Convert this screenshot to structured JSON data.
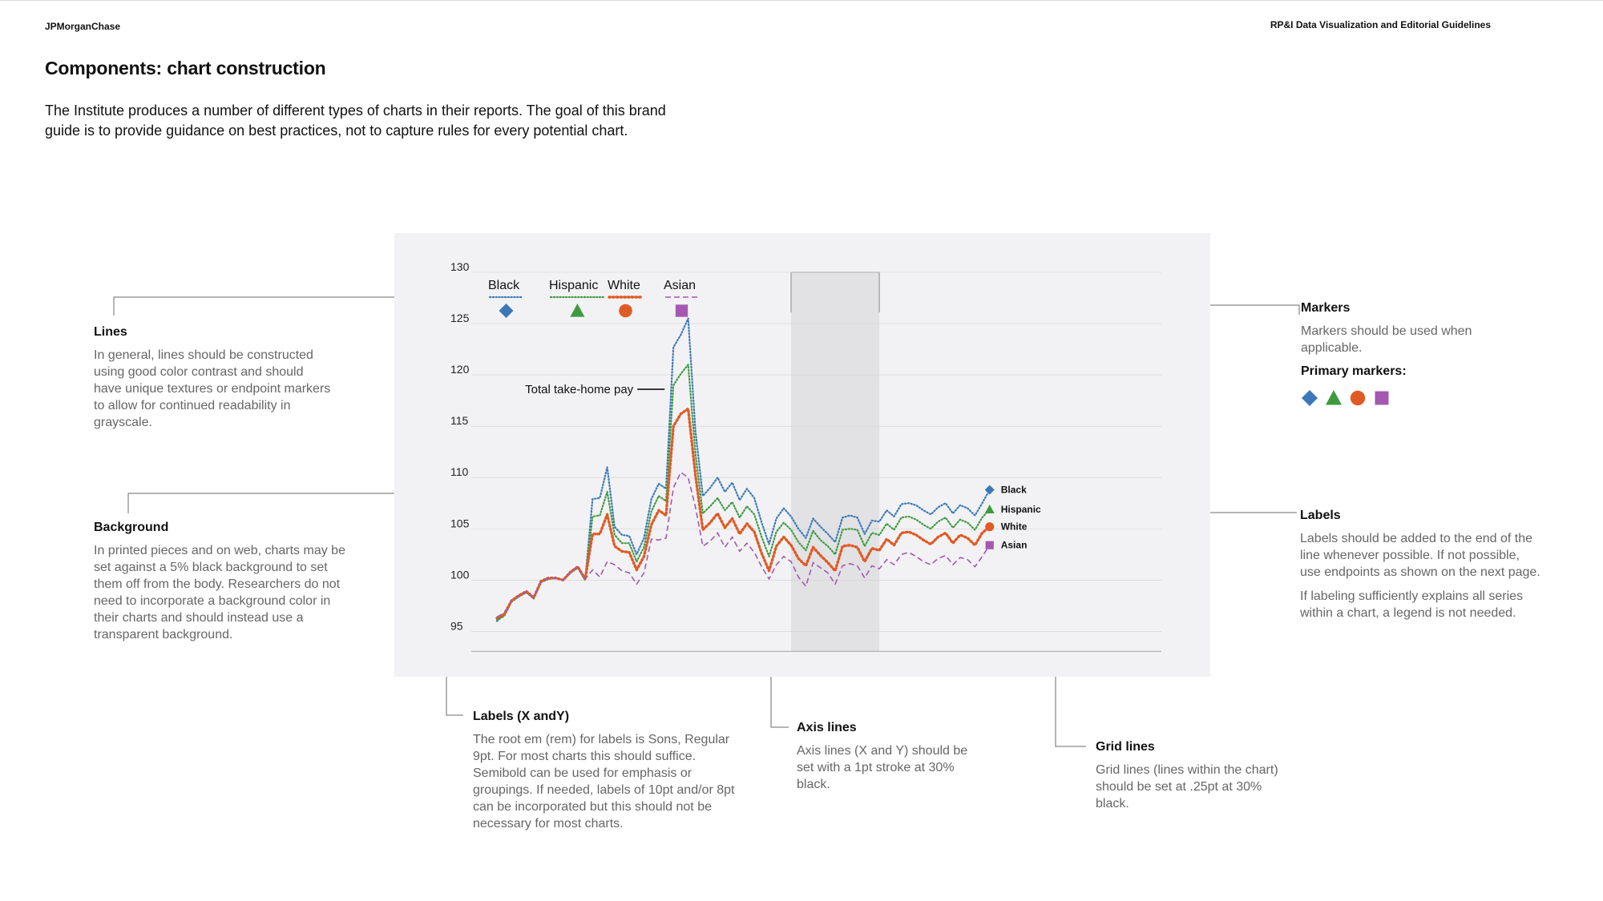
{
  "header": {
    "brand": "JPMorganChase",
    "guide_title": "RP&I Data Visualization and Editorial Guidelines"
  },
  "page": {
    "title": "Components: chart construction",
    "intro": "The Institute produces a number of different types of charts in their reports. The goal of this brand guide is to provide guidance on best practices, not to capture rules for every potential chart."
  },
  "notes": {
    "lines": {
      "heading": "Lines",
      "body": "In general, lines should be constructed using good color contrast and should have unique textures or endpoint markers to allow for continued readability in grayscale."
    },
    "background": {
      "heading": "Background",
      "body": "In printed pieces and on web, charts may be set against a 5% black background to set them off from the body. Researchers do not need to incorporate a background color in their charts and should instead use a transparent background."
    },
    "markers": {
      "heading": "Markers",
      "body": "Markers should be used when applicable.",
      "sub": "Primary markers:",
      "primary_markers": [
        "diamond",
        "triangle",
        "circle",
        "square"
      ]
    },
    "labels": {
      "heading": "Labels",
      "body1": "Labels should be added to the end of the line whenever possible. If not possible, use endpoints as shown on the next page.",
      "body2": "If labeling sufficiently explains all series within a chart, a legend is not needed."
    },
    "labels_xy": {
      "heading": "Labels (X andY)",
      "body": "The root em (rem) for labels is Sons, Regular 9pt. For most charts this should suffice. Semibold can be used for emphasis or groupings. If needed, labels of 10pt and/or 8pt can be incorporated but this should not be necessary for most charts."
    },
    "axis_lines": {
      "heading": "Axis lines",
      "body": "Axis lines (X and Y) should be set with a 1pt stroke at 30% black."
    },
    "grid_lines": {
      "heading": "Grid lines",
      "body": "Grid lines (lines within the chart) should be set at .25pt at 30% black."
    }
  },
  "colors": {
    "black": "#3a78b8",
    "hispanic": "#3f9a3f",
    "white": "#e05a25",
    "asian": "#a458b0",
    "chart_bg": "#f2f2f4",
    "shade": "#e2e2e4",
    "grid": "#d0d0d0",
    "callout": "#6b6b6b"
  },
  "chart_data": {
    "type": "line",
    "annotation": "Total take-home pay",
    "ylim": [
      95,
      130
    ],
    "yticks": [
      130,
      125,
      120,
      115,
      110,
      105,
      100,
      95
    ],
    "xlim": [
      0,
      80
    ],
    "shaded_band": [
      40,
      52
    ],
    "grid": true,
    "legend_placement": "top-left",
    "series": [
      {
        "name": "Black",
        "key": "black",
        "style": "dotted",
        "marker": "diamond",
        "values": [
          96,
          96.6,
          97.9,
          98.4,
          98.8,
          98.2,
          99.8,
          100.1,
          100.2,
          100,
          100.7,
          101.2,
          100,
          107.9,
          108,
          111,
          105.2,
          104.4,
          104.3,
          102.5,
          104.1,
          107.9,
          109.4,
          108.9,
          122.7,
          123.9,
          125.5,
          114.5,
          108.2,
          109,
          110,
          108.6,
          109.5,
          107.8,
          108.9,
          108,
          105.6,
          103.5,
          106,
          107,
          106.2,
          105,
          104.1,
          106,
          105.2,
          104.5,
          103.7,
          106.1,
          106.3,
          106.1,
          104.5,
          105.8,
          105.7,
          106.8,
          106.2,
          107.4,
          107.5,
          107.3,
          106.8,
          106.4,
          107.1,
          107.5,
          106.5,
          107.3,
          107,
          106.3,
          107.5,
          108.8
        ]
      },
      {
        "name": "Hispanic",
        "key": "hispanic",
        "style": "dotted",
        "marker": "triangle",
        "values": [
          96.1,
          96.5,
          97.9,
          98.4,
          98.8,
          98.2,
          99.8,
          100.1,
          100.2,
          100,
          100.7,
          101.2,
          100,
          106.2,
          106.3,
          108.6,
          104.4,
          103.6,
          103.6,
          101.8,
          103.2,
          106.7,
          108.2,
          107.7,
          119,
          120.1,
          121,
          112.3,
          106.5,
          107.2,
          108,
          106.8,
          107.6,
          106.1,
          107.2,
          106.4,
          104.2,
          102.3,
          104.7,
          105.6,
          104.9,
          103.7,
          102.9,
          104.8,
          103.9,
          103.3,
          102.5,
          104.9,
          105,
          104.9,
          103.3,
          104.6,
          104.4,
          105.5,
          104.9,
          106.1,
          106.2,
          105.9,
          105.4,
          105,
          105.7,
          106.1,
          105.1,
          105.9,
          105.6,
          104.9,
          106.1,
          106.9
        ]
      },
      {
        "name": "White",
        "key": "white",
        "style": "dotted-heavy",
        "marker": "circle",
        "values": [
          96.3,
          96.7,
          98,
          98.5,
          98.9,
          98.3,
          99.9,
          100.2,
          100.2,
          100,
          100.8,
          101.3,
          100.1,
          104.5,
          104.5,
          106.4,
          103.3,
          102.8,
          102.7,
          101,
          102.3,
          105.4,
          106.8,
          106.3,
          115,
          116.2,
          116.7,
          110.2,
          104.9,
          105.6,
          106.5,
          105.1,
          106,
          104.5,
          105.5,
          104.7,
          102.6,
          100.9,
          103.3,
          104.2,
          103.4,
          102.1,
          101.4,
          103.2,
          102.4,
          101.7,
          100.9,
          103.3,
          103.4,
          103.2,
          101.8,
          103.1,
          102.9,
          104,
          103.4,
          104.6,
          104.7,
          104.4,
          103.9,
          103.5,
          104.2,
          104.6,
          103.6,
          104.4,
          104.1,
          103.4,
          104.6,
          105.2
        ]
      },
      {
        "name": "Asian",
        "key": "asian",
        "style": "dashed",
        "marker": "square",
        "values": [
          96.4,
          96.8,
          98,
          98.5,
          98.9,
          98.3,
          99.9,
          100.2,
          100.2,
          100,
          100.8,
          101.3,
          100.1,
          101,
          100.3,
          101.8,
          101.5,
          100.9,
          100.7,
          99.6,
          100.7,
          104,
          103.9,
          104.1,
          109,
          110.5,
          110,
          107.1,
          103.3,
          103.8,
          104.6,
          103.2,
          104.2,
          102.8,
          103.6,
          102.7,
          101.3,
          100.1,
          101.5,
          102.3,
          101.8,
          100.3,
          99.4,
          101.7,
          101.2,
          100.7,
          99.6,
          101.4,
          101.6,
          101.4,
          100.2,
          101.4,
          101.1,
          102,
          101.5,
          102.5,
          102.7,
          102.3,
          101.8,
          101.5,
          102.1,
          102.4,
          101.5,
          102.2,
          102,
          101.3,
          102.3,
          103.4
        ]
      }
    ]
  }
}
